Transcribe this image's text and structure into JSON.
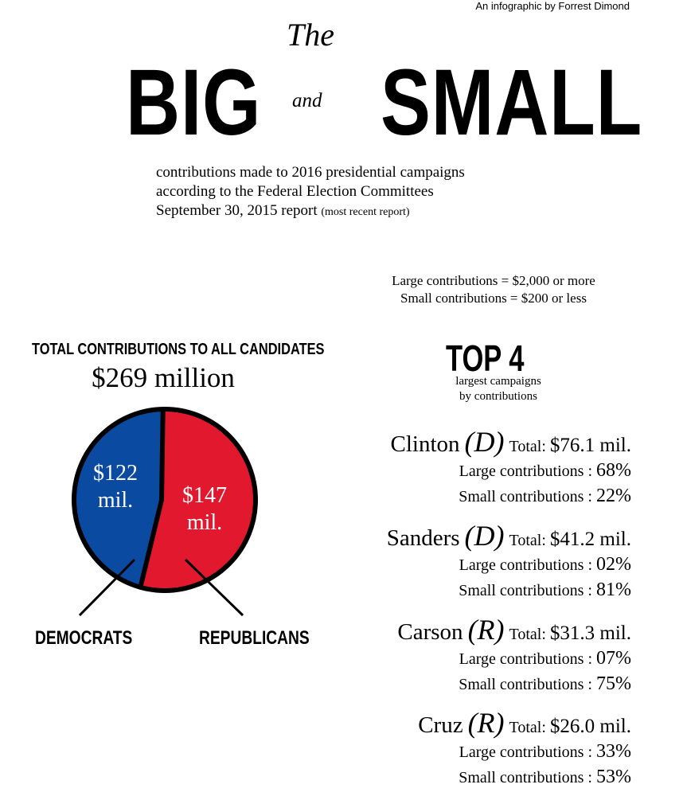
{
  "header": {
    "byline": "An infographic by Forrest Dimond",
    "title_the": "The",
    "title_big": "BIG",
    "title_and": "and",
    "title_small": "SMALL",
    "subtitle_line1": "contributions made to 2016 presidential campaigns",
    "subtitle_line2": "according to the Federal Election Committees",
    "subtitle_line3": "September 30, 2015 report",
    "subtitle_note": "(most recent report)"
  },
  "definitions": {
    "large": "Large contributions = $2,000 or more",
    "small": "Small contributions = $200 or less"
  },
  "totals": {
    "heading": "TOTAL CONTRIBUTIONS TO ALL CANDIDATES",
    "amount": "$269 million"
  },
  "top4": {
    "heading": "TOP 4",
    "sub_line1": "largest campaigns",
    "sub_line2": "by contributions",
    "candidates": [
      {
        "name": "Clinton",
        "party": "(D)",
        "total_label": "Total:",
        "total": "$76.1 mil.",
        "large_label": "Large contributions :",
        "large_pct": "68%",
        "small_label": "Small contributions :",
        "small_pct": "22%"
      },
      {
        "name": "Sanders",
        "party": "(D)",
        "total_label": "Total:",
        "total": "$41.2 mil.",
        "large_label": "Large contributions :",
        "large_pct": "02%",
        "small_label": "Small contributions :",
        "small_pct": "81%"
      },
      {
        "name": "Carson",
        "party": "(R)",
        "total_label": "Total:",
        "total": "$31.3 mil.",
        "large_label": "Large contributions :",
        "large_pct": "07%",
        "small_label": "Small contributions :",
        "small_pct": "75%"
      },
      {
        "name": "Cruz",
        "party": "(R)",
        "total_label": "Total:",
        "total": "$26.0 mil.",
        "large_label": "Large contributions :",
        "large_pct": "33%",
        "small_label": "Small contributions :",
        "small_pct": "53%"
      }
    ]
  },
  "chart_data": {
    "type": "pie",
    "title": "TOTAL CONTRIBUTIONS TO ALL CANDIDATES",
    "total_label": "$269 million",
    "slices": [
      {
        "name": "DEMOCRATS",
        "value": 122,
        "label": "$122 mil.",
        "label_lines": [
          "$122",
          "mil."
        ],
        "color": "#0a4aa0"
      },
      {
        "name": "REPUBLICANS",
        "value": 147,
        "label": "$147 mil.",
        "label_lines": [
          "$147",
          "mil."
        ],
        "color": "#e2192e"
      }
    ],
    "legend": "callout labels below"
  }
}
